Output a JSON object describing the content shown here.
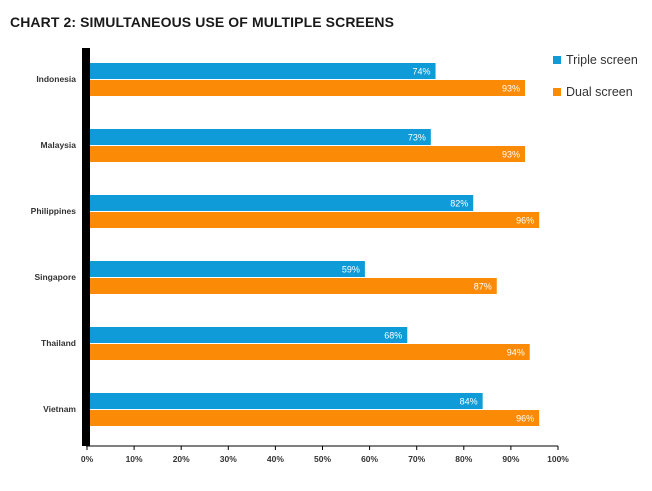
{
  "title": "CHART 2: SIMULTANEOUS USE OF MULTIPLE SCREENS",
  "chart_data": {
    "type": "bar",
    "orientation": "horizontal",
    "categories": [
      "Indonesia",
      "Malaysia",
      "Philippines",
      "Singapore",
      "Thailand",
      "Vietnam"
    ],
    "series": [
      {
        "name": "Triple screen",
        "color": "#0e9bd8",
        "values": [
          74,
          73,
          82,
          59,
          68,
          84
        ],
        "labels": [
          "74%",
          "73%",
          "82%",
          "59%",
          "68%",
          "84%"
        ]
      },
      {
        "name": "Dual screen",
        "color": "#fb8a06",
        "values": [
          93,
          93,
          96,
          87,
          94,
          96
        ],
        "labels": [
          "93%",
          "93%",
          "96%",
          "87%",
          "94%",
          "96%"
        ]
      }
    ],
    "xlim": [
      0,
      100
    ],
    "xticks": [
      "0%",
      "10%",
      "20%",
      "30%",
      "40%",
      "50%",
      "60%",
      "70%",
      "80%",
      "90%",
      "100%"
    ],
    "legend_position": "top-right",
    "grid": false
  }
}
